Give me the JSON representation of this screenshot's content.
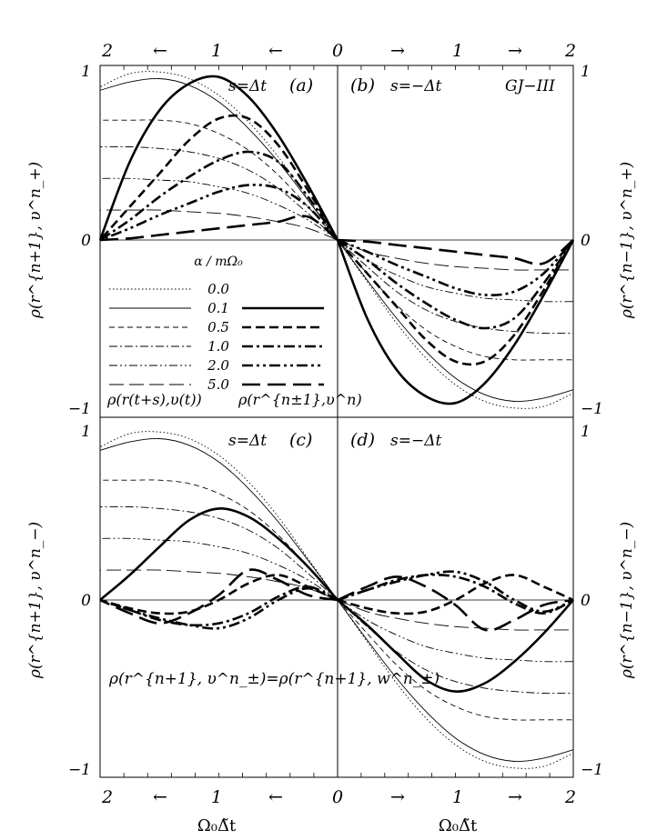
{
  "figure": {
    "top_axis": {
      "labels": [
        "2",
        "←",
        "1",
        "←",
        "0",
        "→",
        "1",
        "→",
        "2"
      ]
    },
    "bottom_axis": {
      "labels": [
        "2",
        "←",
        "1",
        "←",
        "0",
        "→",
        "1",
        "→",
        "2"
      ],
      "xlabel": "Ω₀Δ̃t"
    },
    "ylabel_left_top": "ρ(r^{n+1}, υ^n_+)",
    "ylabel_right_top": "ρ(r^{n−1}, υ^n_+)",
    "ylabel_left_bottom": "ρ(r^{n+1}, υ^n_−)",
    "ylabel_right_bottom": "ρ(r^{n−1}, υ^n_−)",
    "yticks": [
      "1",
      "0",
      "−1"
    ]
  },
  "panels": {
    "a": {
      "label": "(a)",
      "s": "s=Δt"
    },
    "b": {
      "label": "(b)",
      "s": "s=−Δt",
      "tag": "GJ−III"
    },
    "c": {
      "label": "(c)",
      "s": "s=Δt",
      "equation": "ρ(r^{n+1}, υ^n_±)=ρ(r^{n+1}, w^n_±)"
    },
    "d": {
      "label": "(d)",
      "s": "s=−Δt"
    }
  },
  "legend": {
    "header": "α / mΩ₀",
    "values": [
      "0.0",
      "0.1",
      "0.5",
      "1.0",
      "2.0",
      "5.0"
    ],
    "col1_label": "ρ(r(t+s),υ(t))",
    "col2_label": "ρ(r^{n±1},υ^n)"
  },
  "chart_data": {
    "type": "line",
    "x_range": [
      0,
      2
    ],
    "y_range": [
      -1,
      1
    ],
    "alpha_values": [
      0.0,
      0.1,
      0.5,
      1.0,
      2.0,
      5.0
    ],
    "panels": [
      {
        "id": "a",
        "x": [
          0.0,
          0.25,
          0.5,
          0.75,
          1.0,
          1.25,
          1.5,
          1.75,
          2.0
        ],
        "thin_series": [
          {
            "alpha": 0.0,
            "values": [
              0.0,
              0.25,
              0.5,
              0.71,
              0.87,
              0.97,
              1.01,
              1.0,
              0.92
            ]
          },
          {
            "alpha": 0.1,
            "values": [
              0.0,
              0.24,
              0.47,
              0.67,
              0.83,
              0.93,
              0.97,
              0.95,
              0.9
            ]
          },
          {
            "alpha": 0.5,
            "values": [
              0.0,
              0.2,
              0.39,
              0.54,
              0.64,
              0.7,
              0.72,
              0.72,
              0.72
            ]
          },
          {
            "alpha": 1.0,
            "values": [
              0.0,
              0.16,
              0.31,
              0.42,
              0.49,
              0.53,
              0.55,
              0.56,
              0.56
            ]
          },
          {
            "alpha": 2.0,
            "values": [
              0.0,
              0.12,
              0.21,
              0.28,
              0.32,
              0.35,
              0.36,
              0.37,
              0.37
            ]
          },
          {
            "alpha": 5.0,
            "values": [
              0.0,
              0.07,
              0.11,
              0.14,
              0.16,
              0.17,
              0.18,
              0.18,
              0.18
            ]
          }
        ],
        "thick_series": [
          {
            "alpha": 0.1,
            "values": [
              0.0,
              0.33,
              0.63,
              0.86,
              0.98,
              0.94,
              0.78,
              0.47,
              0.0
            ]
          },
          {
            "alpha": 0.5,
            "values": [
              0.0,
              0.3,
              0.57,
              0.73,
              0.73,
              0.6,
              0.4,
              0.2,
              0.0
            ]
          },
          {
            "alpha": 1.0,
            "values": [
              0.0,
              0.26,
              0.47,
              0.53,
              0.48,
              0.38,
              0.26,
              0.12,
              0.0
            ]
          },
          {
            "alpha": 2.0,
            "values": [
              0.0,
              0.2,
              0.31,
              0.33,
              0.29,
              0.22,
              0.15,
              0.07,
              0.0
            ]
          },
          {
            "alpha": 5.0,
            "values": [
              0.0,
              0.14,
              0.11,
              0.09,
              0.07,
              0.05,
              0.03,
              0.01,
              0.0
            ]
          }
        ]
      },
      {
        "id": "b",
        "x": [
          0.0,
          0.25,
          0.5,
          0.75,
          1.0,
          1.25,
          1.5,
          1.75,
          2.0
        ],
        "thin_series": [
          {
            "alpha": 0.0,
            "values": [
              0.0,
              -0.25,
              -0.5,
              -0.71,
              -0.87,
              -0.97,
              -1.01,
              -1.0,
              -0.92
            ]
          },
          {
            "alpha": 0.1,
            "values": [
              0.0,
              -0.24,
              -0.47,
              -0.67,
              -0.83,
              -0.93,
              -0.97,
              -0.95,
              -0.9
            ]
          },
          {
            "alpha": 0.5,
            "values": [
              0.0,
              -0.2,
              -0.39,
              -0.54,
              -0.64,
              -0.7,
              -0.72,
              -0.72,
              -0.72
            ]
          },
          {
            "alpha": 1.0,
            "values": [
              0.0,
              -0.16,
              -0.31,
              -0.42,
              -0.49,
              -0.53,
              -0.55,
              -0.56,
              -0.56
            ]
          },
          {
            "alpha": 2.0,
            "values": [
              0.0,
              -0.12,
              -0.21,
              -0.28,
              -0.32,
              -0.35,
              -0.36,
              -0.37,
              -0.37
            ]
          },
          {
            "alpha": 5.0,
            "values": [
              0.0,
              -0.07,
              -0.11,
              -0.14,
              -0.16,
              -0.17,
              -0.18,
              -0.18,
              -0.18
            ]
          }
        ],
        "thick_series": [
          {
            "alpha": 0.1,
            "values": [
              0.0,
              -0.47,
              -0.78,
              -0.94,
              -0.98,
              -0.86,
              -0.63,
              -0.33,
              0.0
            ]
          },
          {
            "alpha": 0.5,
            "values": [
              0.0,
              -0.2,
              -0.4,
              -0.6,
              -0.73,
              -0.73,
              -0.57,
              -0.3,
              0.0
            ]
          },
          {
            "alpha": 1.0,
            "values": [
              0.0,
              -0.12,
              -0.26,
              -0.38,
              -0.48,
              -0.53,
              -0.47,
              -0.26,
              0.0
            ]
          },
          {
            "alpha": 2.0,
            "values": [
              0.0,
              -0.07,
              -0.15,
              -0.22,
              -0.29,
              -0.33,
              -0.31,
              -0.2,
              0.0
            ]
          },
          {
            "alpha": 5.0,
            "values": [
              0.0,
              -0.01,
              -0.03,
              -0.05,
              -0.07,
              -0.09,
              -0.11,
              -0.14,
              0.0
            ]
          }
        ]
      },
      {
        "id": "c",
        "x": [
          0.0,
          0.25,
          0.5,
          0.75,
          1.0,
          1.25,
          1.5,
          1.75,
          2.0
        ],
        "thin_series": [
          {
            "alpha": 0.0,
            "values": [
              0.0,
              0.25,
              0.5,
              0.71,
              0.87,
              0.97,
              1.01,
              1.0,
              0.92
            ]
          },
          {
            "alpha": 0.1,
            "values": [
              0.0,
              0.24,
              0.47,
              0.67,
              0.83,
              0.93,
              0.97,
              0.95,
              0.9
            ]
          },
          {
            "alpha": 0.5,
            "values": [
              0.0,
              0.2,
              0.39,
              0.54,
              0.64,
              0.7,
              0.72,
              0.72,
              0.72
            ]
          },
          {
            "alpha": 1.0,
            "values": [
              0.0,
              0.16,
              0.31,
              0.42,
              0.49,
              0.53,
              0.55,
              0.56,
              0.56
            ]
          },
          {
            "alpha": 2.0,
            "values": [
              0.0,
              0.12,
              0.21,
              0.28,
              0.32,
              0.35,
              0.36,
              0.37,
              0.37
            ]
          },
          {
            "alpha": 5.0,
            "values": [
              0.0,
              0.07,
              0.11,
              0.14,
              0.16,
              0.17,
              0.18,
              0.18,
              0.18
            ]
          }
        ],
        "thick_series": [
          {
            "alpha": 0.1,
            "values": [
              0.0,
              0.2,
              0.37,
              0.5,
              0.55,
              0.48,
              0.32,
              0.15,
              0.0
            ]
          },
          {
            "alpha": 0.5,
            "values": [
              0.0,
              0.08,
              0.15,
              0.1,
              0.0,
              -0.07,
              -0.08,
              -0.05,
              0.0
            ]
          },
          {
            "alpha": 1.0,
            "values": [
              0.0,
              0.08,
              0.02,
              -0.08,
              -0.14,
              -0.15,
              -0.12,
              -0.06,
              0.0
            ]
          },
          {
            "alpha": 2.0,
            "values": [
              0.0,
              0.07,
              0.0,
              -0.11,
              -0.17,
              -0.15,
              -0.11,
              -0.06,
              0.0
            ]
          },
          {
            "alpha": 5.0,
            "values": [
              0.0,
              0.03,
              0.12,
              0.18,
              0.03,
              -0.08,
              -0.14,
              -0.08,
              0.0
            ]
          }
        ]
      },
      {
        "id": "d",
        "x": [
          0.0,
          0.25,
          0.5,
          0.75,
          1.0,
          1.25,
          1.5,
          1.75,
          2.0
        ],
        "thin_series": [
          {
            "alpha": 0.0,
            "values": [
              0.0,
              -0.25,
              -0.5,
              -0.71,
              -0.87,
              -0.97,
              -1.01,
              -1.0,
              -0.92
            ]
          },
          {
            "alpha": 0.1,
            "values": [
              0.0,
              -0.24,
              -0.47,
              -0.67,
              -0.83,
              -0.93,
              -0.97,
              -0.95,
              -0.9
            ]
          },
          {
            "alpha": 0.5,
            "values": [
              0.0,
              -0.2,
              -0.39,
              -0.54,
              -0.64,
              -0.7,
              -0.72,
              -0.72,
              -0.72
            ]
          },
          {
            "alpha": 1.0,
            "values": [
              0.0,
              -0.16,
              -0.31,
              -0.42,
              -0.49,
              -0.53,
              -0.55,
              -0.56,
              -0.56
            ]
          },
          {
            "alpha": 2.0,
            "values": [
              0.0,
              -0.12,
              -0.21,
              -0.28,
              -0.32,
              -0.35,
              -0.36,
              -0.37,
              -0.37
            ]
          },
          {
            "alpha": 5.0,
            "values": [
              0.0,
              -0.07,
              -0.11,
              -0.14,
              -0.16,
              -0.17,
              -0.18,
              -0.18,
              -0.18
            ]
          }
        ],
        "thick_series": [
          {
            "alpha": 0.1,
            "values": [
              0.0,
              -0.15,
              -0.32,
              -0.48,
              -0.55,
              -0.5,
              -0.37,
              -0.2,
              0.0
            ]
          },
          {
            "alpha": 0.5,
            "values": [
              0.0,
              -0.05,
              -0.08,
              -0.07,
              0.0,
              0.1,
              0.15,
              0.08,
              0.0
            ]
          },
          {
            "alpha": 1.0,
            "values": [
              0.0,
              0.06,
              0.12,
              0.15,
              0.14,
              0.08,
              -0.02,
              -0.08,
              0.0
            ]
          },
          {
            "alpha": 2.0,
            "values": [
              0.0,
              0.06,
              0.11,
              0.15,
              0.17,
              0.11,
              0.0,
              -0.07,
              0.0
            ]
          },
          {
            "alpha": 5.0,
            "values": [
              0.0,
              0.08,
              0.14,
              0.08,
              -0.03,
              -0.18,
              -0.12,
              -0.03,
              0.0
            ]
          }
        ]
      }
    ]
  }
}
